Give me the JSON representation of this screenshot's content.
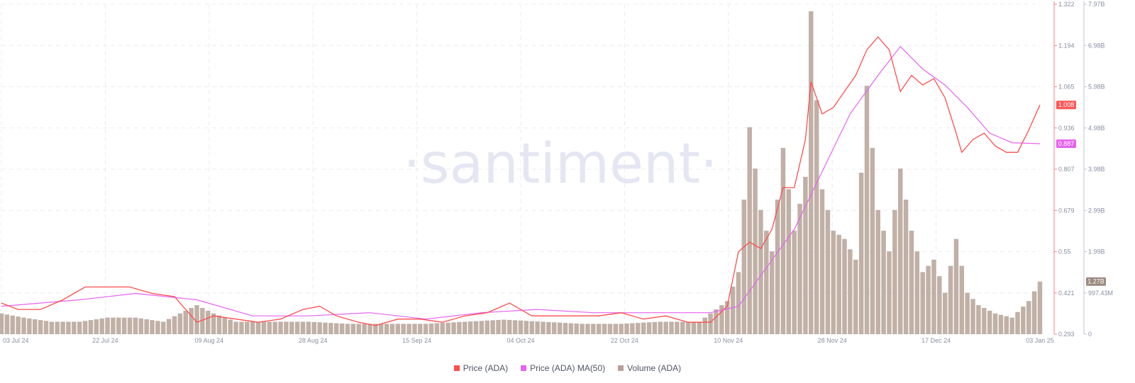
{
  "chart_data": {
    "type": "line",
    "watermark": "·santiment·",
    "x_start": "2024-07-01",
    "x_end": "2025-01-03",
    "x_tick_labels": [
      "03 Jul 24",
      "22 Jul 24",
      "09 Aug 24",
      "28 Aug 24",
      "15 Sep 24",
      "04 Oct 24",
      "22 Oct 24",
      "10 Nov 24",
      "28 Nov 24",
      "17 Dec 24",
      "03 Jan 25"
    ],
    "price_axis": {
      "ticks": [
        "1.322",
        "1.194",
        "1.065",
        "0.936",
        "0.807",
        "0.679",
        "0.55",
        "0.421",
        "0.293"
      ],
      "min": 0.293,
      "max": 1.322,
      "color": "#ff5b5b"
    },
    "volume_axis": {
      "ticks": [
        "7.97B",
        "6.98B",
        "5.98B",
        "4.98B",
        "3.98B",
        "2.99B",
        "1.99B",
        "997.43M",
        "0"
      ],
      "min": 0,
      "max": 7.97,
      "unit": "B",
      "color": "#a8acc0"
    },
    "badges": {
      "price": "1.008",
      "ma": "0.887",
      "volume": "1.27B"
    },
    "series": [
      {
        "name": "Price (ADA)",
        "color": "#ff4d4d",
        "type": "line",
        "points": [
          [
            "2024-07-01",
            0.39
          ],
          [
            "2024-07-04",
            0.37
          ],
          [
            "2024-07-08",
            0.37
          ],
          [
            "2024-07-12",
            0.4
          ],
          [
            "2024-07-16",
            0.44
          ],
          [
            "2024-07-20",
            0.44
          ],
          [
            "2024-07-24",
            0.44
          ],
          [
            "2024-07-28",
            0.42
          ],
          [
            "2024-08-01",
            0.41
          ],
          [
            "2024-08-05",
            0.33
          ],
          [
            "2024-08-08",
            0.35
          ],
          [
            "2024-08-12",
            0.34
          ],
          [
            "2024-08-16",
            0.33
          ],
          [
            "2024-08-20",
            0.34
          ],
          [
            "2024-08-24",
            0.37
          ],
          [
            "2024-08-27",
            0.38
          ],
          [
            "2024-08-30",
            0.35
          ],
          [
            "2024-09-03",
            0.33
          ],
          [
            "2024-09-06",
            0.32
          ],
          [
            "2024-09-10",
            0.34
          ],
          [
            "2024-09-14",
            0.34
          ],
          [
            "2024-09-18",
            0.33
          ],
          [
            "2024-09-22",
            0.35
          ],
          [
            "2024-09-26",
            0.36
          ],
          [
            "2024-09-30",
            0.39
          ],
          [
            "2024-10-04",
            0.35
          ],
          [
            "2024-10-08",
            0.35
          ],
          [
            "2024-10-12",
            0.35
          ],
          [
            "2024-10-16",
            0.35
          ],
          [
            "2024-10-20",
            0.36
          ],
          [
            "2024-10-24",
            0.34
          ],
          [
            "2024-10-28",
            0.35
          ],
          [
            "2024-11-01",
            0.33
          ],
          [
            "2024-11-05",
            0.33
          ],
          [
            "2024-11-08",
            0.38
          ],
          [
            "2024-11-10",
            0.55
          ],
          [
            "2024-11-12",
            0.58
          ],
          [
            "2024-11-14",
            0.56
          ],
          [
            "2024-11-16",
            0.62
          ],
          [
            "2024-11-18",
            0.75
          ],
          [
            "2024-11-20",
            0.75
          ],
          [
            "2024-11-22",
            0.9
          ],
          [
            "2024-11-23",
            1.08
          ],
          [
            "2024-11-25",
            0.98
          ],
          [
            "2024-11-27",
            1.0
          ],
          [
            "2024-11-29",
            1.05
          ],
          [
            "2024-12-01",
            1.1
          ],
          [
            "2024-12-03",
            1.18
          ],
          [
            "2024-12-05",
            1.22
          ],
          [
            "2024-12-07",
            1.18
          ],
          [
            "2024-12-09",
            1.05
          ],
          [
            "2024-12-11",
            1.1
          ],
          [
            "2024-12-13",
            1.07
          ],
          [
            "2024-12-15",
            1.09
          ],
          [
            "2024-12-17",
            1.03
          ],
          [
            "2024-12-19",
            0.92
          ],
          [
            "2024-12-20",
            0.86
          ],
          [
            "2024-12-22",
            0.9
          ],
          [
            "2024-12-24",
            0.92
          ],
          [
            "2024-12-26",
            0.88
          ],
          [
            "2024-12-28",
            0.86
          ],
          [
            "2024-12-30",
            0.86
          ],
          [
            "2025-01-01",
            0.93
          ],
          [
            "2025-01-03",
            1.008
          ]
        ]
      },
      {
        "name": "Price (ADA) MA(50)",
        "color": "#e663f0",
        "type": "line",
        "points": [
          [
            "2024-07-01",
            0.38
          ],
          [
            "2024-07-15",
            0.4
          ],
          [
            "2024-07-25",
            0.42
          ],
          [
            "2024-08-05",
            0.4
          ],
          [
            "2024-08-15",
            0.35
          ],
          [
            "2024-08-25",
            0.35
          ],
          [
            "2024-09-05",
            0.36
          ],
          [
            "2024-09-15",
            0.34
          ],
          [
            "2024-09-25",
            0.36
          ],
          [
            "2024-10-05",
            0.37
          ],
          [
            "2024-10-15",
            0.36
          ],
          [
            "2024-10-25",
            0.36
          ],
          [
            "2024-11-05",
            0.36
          ],
          [
            "2024-11-10",
            0.38
          ],
          [
            "2024-11-15",
            0.5
          ],
          [
            "2024-11-20",
            0.62
          ],
          [
            "2024-11-25",
            0.8
          ],
          [
            "2024-11-30",
            0.98
          ],
          [
            "2024-12-05",
            1.1
          ],
          [
            "2024-12-09",
            1.19
          ],
          [
            "2024-12-13",
            1.12
          ],
          [
            "2024-12-17",
            1.07
          ],
          [
            "2024-12-21",
            1.0
          ],
          [
            "2024-12-25",
            0.92
          ],
          [
            "2024-12-29",
            0.89
          ],
          [
            "2025-01-03",
            0.887
          ]
        ]
      },
      {
        "name": "Volume (ADA)",
        "color": "#b5a296",
        "type": "bar",
        "unit": "B",
        "points": [
          [
            "2024-07-01",
            0.5
          ],
          [
            "2024-07-05",
            0.4
          ],
          [
            "2024-07-10",
            0.3
          ],
          [
            "2024-07-15",
            0.3
          ],
          [
            "2024-07-20",
            0.4
          ],
          [
            "2024-07-25",
            0.4
          ],
          [
            "2024-07-30",
            0.3
          ],
          [
            "2024-08-05",
            0.7
          ],
          [
            "2024-08-08",
            0.5
          ],
          [
            "2024-08-12",
            0.3
          ],
          [
            "2024-08-18",
            0.3
          ],
          [
            "2024-08-25",
            0.3
          ],
          [
            "2024-09-01",
            0.25
          ],
          [
            "2024-09-08",
            0.25
          ],
          [
            "2024-09-15",
            0.25
          ],
          [
            "2024-09-22",
            0.3
          ],
          [
            "2024-09-29",
            0.35
          ],
          [
            "2024-10-06",
            0.3
          ],
          [
            "2024-10-13",
            0.25
          ],
          [
            "2024-10-20",
            0.25
          ],
          [
            "2024-10-27",
            0.3
          ],
          [
            "2024-11-03",
            0.3
          ],
          [
            "2024-11-08",
            0.8
          ],
          [
            "2024-11-10",
            1.5
          ],
          [
            "2024-11-12",
            5.0
          ],
          [
            "2024-11-14",
            3.0
          ],
          [
            "2024-11-16",
            2.0
          ],
          [
            "2024-11-18",
            4.5
          ],
          [
            "2024-11-20",
            2.5
          ],
          [
            "2024-11-22",
            3.8
          ],
          [
            "2024-11-23",
            7.8
          ],
          [
            "2024-11-25",
            3.5
          ],
          [
            "2024-11-27",
            2.5
          ],
          [
            "2024-11-29",
            2.3
          ],
          [
            "2024-12-01",
            1.8
          ],
          [
            "2024-12-03",
            6.0
          ],
          [
            "2024-12-05",
            3.0
          ],
          [
            "2024-12-07",
            2.0
          ],
          [
            "2024-12-09",
            4.0
          ],
          [
            "2024-12-11",
            2.5
          ],
          [
            "2024-12-13",
            1.5
          ],
          [
            "2024-12-15",
            1.8
          ],
          [
            "2024-12-17",
            1.0
          ],
          [
            "2024-12-19",
            2.3
          ],
          [
            "2024-12-21",
            1.0
          ],
          [
            "2024-12-23",
            0.7
          ],
          [
            "2024-12-26",
            0.5
          ],
          [
            "2024-12-29",
            0.4
          ],
          [
            "2025-01-01",
            0.8
          ],
          [
            "2025-01-03",
            1.27
          ]
        ]
      }
    ],
    "legend": [
      {
        "label": "Price (ADA)",
        "color": "#ff4d4d"
      },
      {
        "label": "Price (ADA) MA(50)",
        "color": "#e663f0"
      },
      {
        "label": "Volume (ADA)",
        "color": "#b5a296"
      }
    ]
  }
}
